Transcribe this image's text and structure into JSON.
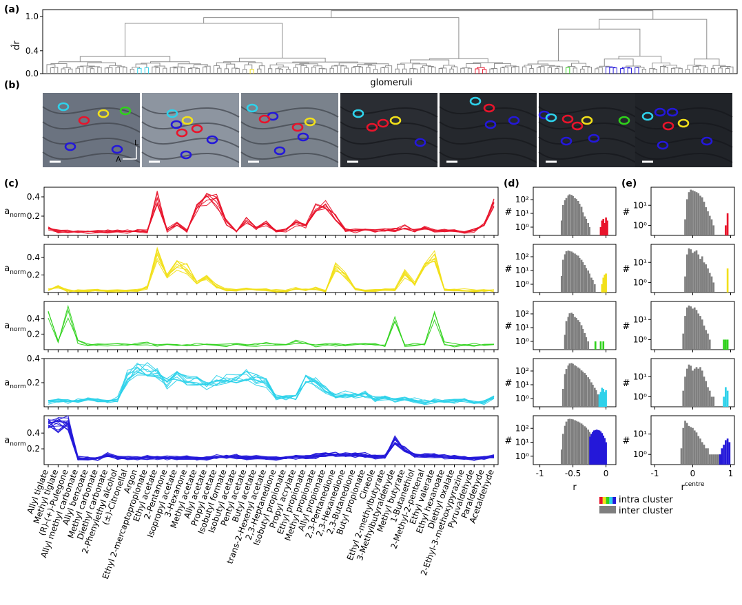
{
  "panel_labels": [
    "(a)",
    "(b)",
    "(c)",
    "(d)",
    "(e)"
  ],
  "colors": {
    "red": "#e8142b",
    "yellow": "#f2e01a",
    "green": "#2fd11b",
    "cyan": "#2ed1ea",
    "blue": "#2418d9",
    "gray": "#7f7f7f",
    "tree": "#8c8c8c"
  },
  "dendrogram": {
    "ylabel": "d̂r",
    "xlabel": "glomeruli",
    "yticks": [
      "0.0",
      "0.4",
      "1.0"
    ],
    "ytick_values": [
      0.0,
      0.4,
      1.0
    ],
    "ylim": [
      0,
      1.12
    ],
    "cluster_order": [
      "cyan",
      "yellow",
      "red",
      "green",
      "blue"
    ]
  },
  "images": {
    "count": 7,
    "orientation_labels": [
      "L",
      "A"
    ],
    "glomerulus_colors": [
      "cyan",
      "red",
      "yellow",
      "green",
      "blue"
    ]
  },
  "odorants": [
    "Allyl tiglate",
    "Methyl tiglate",
    "(R)-(+)-Pulegone",
    "Allyl methyl carbonate",
    "Allyl benzoate",
    "Methyl carbonate",
    "Diethyl carbonate",
    "2-Phenylethyl alcohol",
    "(±)-Citronellal",
    "Argon",
    "Ethyl 2-mercaptopropionate",
    "Ethyl acetate",
    "2-Pentanone",
    "Isopropyl acetate",
    "3-Hexanone",
    "Methyl acetate",
    "Allyl acetate",
    "Propyl acetate",
    "Isobutyl formate",
    "Isobutyl acetate",
    "Pentyl acetate",
    "Butyl acetate",
    "trans-2-Hexenyl acetate",
    "2,3-Heptanedione",
    "Isobutyl propionate",
    "Propyl acrylate",
    "Ethyl propionate",
    "Methyl propionate",
    "Allyl propionate",
    "2,3-Pentanedione",
    "2,3-Hexanedione",
    "2,3-Butanedione",
    "Butyl propionate",
    "Cineole",
    "Ethyl 2-methylbutyrate",
    "3-Methylbutyraldehyde",
    "Methyl butyrate",
    "1-Butanethiol",
    "2-Methyl-2-pentenal",
    "Ethyl valerate",
    "Ethyl hexanoate",
    "Diethyl oxalate",
    "2-Ethyl-3-methoxypyrazine",
    "Pyruvaldehyde",
    "Paraldehyde",
    "Acetaldehyde"
  ],
  "profiles_axis": {
    "ylabel": "anorm",
    "ylabel_main": "a",
    "ylabel_sub": "norm"
  },
  "histograms": {
    "d": {
      "xlabel": "r",
      "xticks": [
        "-1",
        "-0.5",
        "0"
      ],
      "yticks": [
        "10⁰",
        "10¹",
        "10²"
      ],
      "ylabel": "#"
    },
    "e": {
      "xlabel_main": "r",
      "xlabel_sup": "centre",
      "xlabel": "rcentre",
      "xticks": [
        "-1",
        "0",
        "1"
      ],
      "yticks": [
        "10⁰",
        "10¹"
      ],
      "ylabel": "#"
    },
    "legend": {
      "intra": "intra cluster",
      "inter": "inter cluster"
    }
  },
  "chart_data": [
    {
      "type": "line",
      "panel": "c",
      "ylabel": "anorm",
      "x": "odorants",
      "series": [
        {
          "cluster": "red",
          "yticks": [
            0.2,
            0.4
          ],
          "ylim": [
            0,
            0.5
          ],
          "mean": [
            0.07,
            0.04,
            0.04,
            0.04,
            0.04,
            0.04,
            0.04,
            0.04,
            0.04,
            0.04,
            0.04,
            0.4,
            0.05,
            0.12,
            0.05,
            0.28,
            0.38,
            0.36,
            0.13,
            0.04,
            0.16,
            0.07,
            0.13,
            0.04,
            0.06,
            0.13,
            0.11,
            0.28,
            0.31,
            0.18,
            0.06,
            0.05,
            0.06,
            0.04,
            0.06,
            0.06,
            0.08,
            0.05,
            0.08,
            0.05,
            0.05,
            0.05,
            0.04,
            0.05,
            0.11,
            0.33
          ]
        },
        {
          "cluster": "yellow",
          "yticks": [
            0.2,
            0.4
          ],
          "ylim": [
            0,
            0.55
          ],
          "mean": [
            0.03,
            0.06,
            0.02,
            0.02,
            0.02,
            0.02,
            0.02,
            0.02,
            0.02,
            0.02,
            0.06,
            0.42,
            0.2,
            0.32,
            0.28,
            0.12,
            0.18,
            0.08,
            0.03,
            0.02,
            0.04,
            0.03,
            0.03,
            0.02,
            0.02,
            0.04,
            0.03,
            0.04,
            0.02,
            0.29,
            0.2,
            0.04,
            0.02,
            0.02,
            0.03,
            0.04,
            0.22,
            0.1,
            0.28,
            0.44,
            0.04,
            0.03,
            0.03,
            0.02,
            0.02,
            0.02
          ]
        },
        {
          "cluster": "green",
          "yticks": [
            0.2,
            0.4
          ],
          "ylim": [
            0,
            0.62
          ],
          "mean": [
            0.45,
            0.1,
            0.52,
            0.1,
            0.06,
            0.06,
            0.06,
            0.06,
            0.06,
            0.06,
            0.08,
            0.06,
            0.06,
            0.06,
            0.06,
            0.06,
            0.07,
            0.06,
            0.06,
            0.07,
            0.07,
            0.06,
            0.07,
            0.06,
            0.06,
            0.1,
            0.08,
            0.06,
            0.07,
            0.06,
            0.06,
            0.06,
            0.06,
            0.07,
            0.06,
            0.35,
            0.06,
            0.07,
            0.07,
            0.42,
            0.08,
            0.06,
            0.06,
            0.06,
            0.06,
            0.06
          ]
        },
        {
          "cluster": "cyan",
          "yticks": [
            0.2,
            0.4
          ],
          "ylim": [
            0,
            0.4
          ],
          "mean": [
            0.04,
            0.05,
            0.05,
            0.05,
            0.06,
            0.05,
            0.05,
            0.06,
            0.26,
            0.3,
            0.31,
            0.28,
            0.2,
            0.25,
            0.21,
            0.22,
            0.17,
            0.21,
            0.23,
            0.24,
            0.25,
            0.23,
            0.19,
            0.08,
            0.08,
            0.07,
            0.23,
            0.2,
            0.14,
            0.09,
            0.1,
            0.09,
            0.1,
            0.06,
            0.08,
            0.06,
            0.06,
            0.06,
            0.04,
            0.05,
            0.04,
            0.05,
            0.05,
            0.04,
            0.04,
            0.07
          ]
        },
        {
          "cluster": "blue",
          "yticks": [
            0.2,
            0.4
          ],
          "ylim": [
            0,
            0.62
          ],
          "mean": [
            0.5,
            0.5,
            0.55,
            0.08,
            0.08,
            0.08,
            0.12,
            0.09,
            0.08,
            0.08,
            0.09,
            0.09,
            0.09,
            0.08,
            0.09,
            0.08,
            0.08,
            0.1,
            0.1,
            0.1,
            0.09,
            0.09,
            0.08,
            0.08,
            0.08,
            0.1,
            0.1,
            0.11,
            0.13,
            0.13,
            0.12,
            0.12,
            0.12,
            0.1,
            0.1,
            0.32,
            0.18,
            0.12,
            0.11,
            0.11,
            0.1,
            0.1,
            0.08,
            0.08,
            0.08,
            0.1
          ]
        }
      ]
    },
    {
      "type": "bar",
      "panel": "d",
      "xlabel": "r",
      "ylabel": "#",
      "xlim": [
        -1.1,
        0.15
      ],
      "yscale": "log",
      "ylim_exp": [
        -0.6,
        2.9
      ],
      "rows": [
        {
          "cluster": "red",
          "inter": {
            "x": [
              -0.67,
              -0.65,
              -0.62,
              -0.6,
              -0.57,
              -0.55,
              -0.52,
              -0.5,
              -0.47,
              -0.45,
              -0.42,
              -0.4,
              -0.37,
              -0.35,
              -0.32,
              -0.3,
              -0.27,
              -0.25
            ],
            "counts": [
              3,
              40,
              90,
              130,
              200,
              240,
              220,
              180,
              130,
              110,
              80,
              50,
              30,
              12,
              6,
              4,
              2,
              1
            ]
          },
          "intra": {
            "x": [
              -0.08,
              -0.06,
              -0.04,
              -0.02,
              0.0,
              0.02
            ],
            "counts": [
              1,
              3,
              4,
              2,
              5,
              3
            ]
          }
        },
        {
          "cluster": "yellow",
          "inter": {
            "x": [
              -0.67,
              -0.65,
              -0.62,
              -0.6,
              -0.57,
              -0.55,
              -0.52,
              -0.5,
              -0.47,
              -0.45,
              -0.42,
              -0.4,
              -0.37,
              -0.35,
              -0.32,
              -0.3,
              -0.27,
              -0.25,
              -0.22,
              -0.2,
              -0.17
            ],
            "counts": [
              4,
              60,
              150,
              250,
              280,
              260,
              240,
              200,
              170,
              140,
              120,
              80,
              60,
              40,
              25,
              15,
              10,
              6,
              3,
              2,
              1
            ]
          },
          "intra": {
            "x": [
              -0.06,
              -0.04,
              -0.02,
              0.0
            ],
            "counts": [
              1,
              3,
              5,
              6
            ]
          }
        },
        {
          "cluster": "green",
          "inter": {
            "x": [
              -0.62,
              -0.6,
              -0.57,
              -0.55,
              -0.52,
              -0.5,
              -0.47,
              -0.45,
              -0.42,
              -0.4,
              -0.37,
              -0.35,
              -0.32,
              -0.3,
              -0.27
            ],
            "counts": [
              3,
              30,
              60,
              110,
              120,
              100,
              60,
              50,
              35,
              25,
              15,
              8,
              4,
              2,
              1
            ]
          },
          "intra": {
            "x": [
              -0.16,
              -0.08,
              -0.04
            ],
            "counts": [
              1,
              1,
              1
            ]
          }
        },
        {
          "cluster": "cyan",
          "inter": {
            "x": [
              -0.65,
              -0.62,
              -0.6,
              -0.57,
              -0.55,
              -0.52,
              -0.5,
              -0.47,
              -0.45,
              -0.42,
              -0.4,
              -0.37,
              -0.35,
              -0.32,
              -0.3,
              -0.27,
              -0.25,
              -0.22,
              -0.2,
              -0.17,
              -0.15,
              -0.12
            ],
            "counts": [
              5,
              60,
              140,
              250,
              350,
              380,
              330,
              260,
              220,
              180,
              150,
              110,
              90,
              70,
              50,
              35,
              25,
              15,
              10,
              6,
              4,
              2
            ]
          },
          "intra": {
            "x": [
              -0.1,
              -0.08,
              -0.06,
              -0.04,
              -0.02,
              0.0
            ],
            "counts": [
              2,
              3,
              6,
              5,
              3,
              4
            ]
          }
        },
        {
          "cluster": "blue",
          "inter": {
            "x": [
              -0.67,
              -0.65,
              -0.62,
              -0.6,
              -0.57,
              -0.55,
              -0.52,
              -0.5,
              -0.47,
              -0.45,
              -0.42,
              -0.4,
              -0.37,
              -0.35,
              -0.32,
              -0.3,
              -0.27,
              -0.25,
              -0.22,
              -0.2,
              -0.17
            ],
            "counts": [
              3,
              40,
              150,
              300,
              450,
              480,
              460,
              430,
              380,
              340,
              300,
              260,
              220,
              180,
              140,
              110,
              80,
              55,
              35,
              20,
              10
            ]
          },
          "intra": {
            "x": [
              -0.24,
              -0.22,
              -0.2,
              -0.18,
              -0.16,
              -0.14,
              -0.12,
              -0.1,
              -0.08,
              -0.06,
              -0.04,
              -0.02,
              0.0
            ],
            "counts": [
              25,
              40,
              55,
              70,
              75,
              80,
              75,
              70,
              60,
              45,
              30,
              20,
              10
            ]
          }
        }
      ]
    },
    {
      "type": "bar",
      "panel": "e",
      "xlabel": "rcentre",
      "ylabel": "#",
      "xlim": [
        -1.1,
        1.1
      ],
      "yscale": "log",
      "ylim_exp": [
        -0.5,
        1.9
      ],
      "rows": [
        {
          "cluster": "red",
          "inter": {
            "x": [
              -0.2,
              -0.15,
              -0.1,
              -0.05,
              0.0,
              0.05,
              0.1,
              0.15,
              0.2,
              0.25,
              0.3,
              0.35,
              0.4,
              0.45,
              0.5,
              0.55
            ],
            "counts": [
              2,
              20,
              45,
              60,
              55,
              50,
              45,
              40,
              30,
              25,
              15,
              8,
              5,
              3,
              2,
              1
            ]
          },
          "intra": {
            "x": [
              0.87,
              0.92
            ],
            "counts": [
              1,
              4
            ]
          }
        },
        {
          "cluster": "yellow",
          "inter": {
            "x": [
              -0.2,
              -0.15,
              -0.1,
              -0.05,
              0.0,
              0.05,
              0.1,
              0.15,
              0.2,
              0.25,
              0.3,
              0.35,
              0.4,
              0.45,
              0.5,
              0.55
            ],
            "counts": [
              2,
              25,
              50,
              45,
              30,
              35,
              40,
              25,
              15,
              20,
              10,
              8,
              5,
              3,
              2,
              1
            ]
          },
          "intra": {
            "x": [
              0.92
            ],
            "counts": [
              5
            ]
          }
        },
        {
          "cluster": "green",
          "inter": {
            "x": [
              -0.25,
              -0.2,
              -0.15,
              -0.1,
              -0.05,
              0.0,
              0.05,
              0.1,
              0.15,
              0.2,
              0.25,
              0.3,
              0.35,
              0.4,
              0.45
            ],
            "counts": [
              2,
              15,
              40,
              50,
              45,
              35,
              40,
              30,
              20,
              15,
              10,
              5,
              3,
              2,
              1
            ]
          },
          "intra": {
            "x": [
              0.82,
              0.87,
              0.92
            ],
            "counts": [
              1,
              1,
              1
            ]
          }
        },
        {
          "cluster": "cyan",
          "inter": {
            "x": [
              -0.25,
              -0.2,
              -0.15,
              -0.1,
              -0.05,
              0.0,
              0.05,
              0.1,
              0.15,
              0.2,
              0.25,
              0.3,
              0.35,
              0.4,
              0.45,
              0.5,
              0.55
            ],
            "counts": [
              2,
              10,
              25,
              40,
              35,
              20,
              25,
              30,
              25,
              30,
              20,
              10,
              6,
              3,
              2,
              1,
              1
            ]
          },
          "intra": {
            "x": [
              0.82,
              0.87,
              0.92
            ],
            "counts": [
              1,
              3,
              2
            ]
          }
        },
        {
          "cluster": "blue",
          "inter": {
            "x": [
              -0.3,
              -0.25,
              -0.2,
              -0.15,
              -0.1,
              -0.05,
              0.0,
              0.05,
              0.1,
              0.15,
              0.2,
              0.25,
              0.3,
              0.35,
              0.4,
              0.45,
              0.5,
              0.55,
              0.6,
              0.65,
              0.7,
              0.75
            ],
            "counts": [
              2,
              20,
              45,
              35,
              25,
              22,
              20,
              15,
              12,
              8,
              6,
              4,
              3,
              2,
              2,
              1,
              1,
              1,
              1,
              1,
              1,
              1
            ]
          },
          "intra": {
            "x": [
              0.72,
              0.77,
              0.82,
              0.87,
              0.92,
              0.97
            ],
            "counts": [
              1,
              2,
              3,
              5,
              6,
              4
            ]
          }
        }
      ]
    }
  ]
}
